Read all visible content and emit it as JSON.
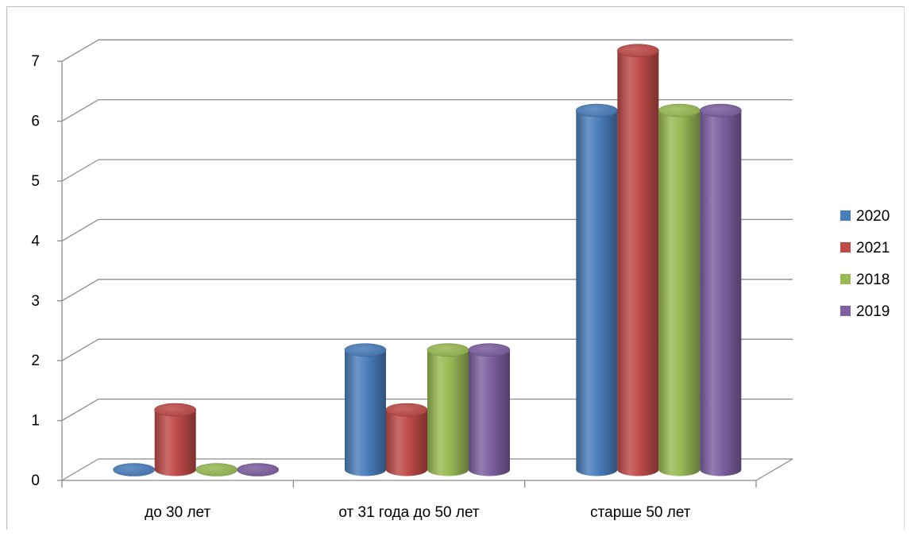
{
  "chart_data": {
    "type": "bar",
    "title": "",
    "xlabel": "",
    "ylabel": "",
    "categories": [
      "до 30 лет",
      "от 31 года до 50 лет",
      "старше 50 лет"
    ],
    "series": [
      {
        "name": "2020",
        "values": [
          0,
          2,
          6
        ],
        "color": "#4a7ebb"
      },
      {
        "name": "2021",
        "values": [
          1,
          1,
          7
        ],
        "color": "#be4b48"
      },
      {
        "name": "2018",
        "values": [
          0,
          2,
          6
        ],
        "color": "#98b954"
      },
      {
        "name": "2019",
        "values": [
          0,
          2,
          6
        ],
        "color": "#7d60a0"
      }
    ],
    "ylim": [
      0,
      7
    ],
    "yticks": [
      "0",
      "1",
      "2",
      "3",
      "4",
      "5",
      "6",
      "7"
    ],
    "grid": true,
    "legend_position": "right",
    "style": "3d-cylinder"
  }
}
